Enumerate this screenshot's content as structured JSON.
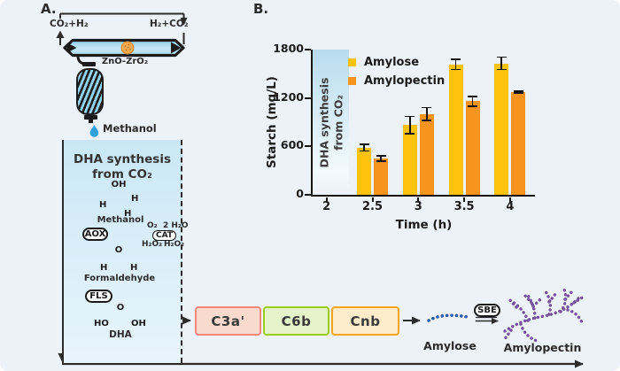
{
  "panel_a": {
    "label": "A.",
    "inlet_gas": "CO₂+H₂",
    "outlet_gas": "H₂+CO₂",
    "catalyst": "ZnO-ZrO₂",
    "condensed_product": "Methanol",
    "reaction_box": {
      "title_line1": "DHA synthesis",
      "title_line2": "from CO₂",
      "methanol_struct": {
        "oh": "OH",
        "h_left": "H",
        "h_right": "H",
        "h_bottom": "H",
        "label": "Methanol"
      },
      "aox_enzyme": "AOX",
      "cat_enzyme": "CAT",
      "o2": "O₂",
      "water": "2 H₂O",
      "h2o2_in": "H₂O₂",
      "h2o2_out": "H₂O₂",
      "formaldehyde_struct": {
        "o": "O",
        "h_left": "H",
        "h_right": "H",
        "label": "Formaldehyde"
      },
      "fls_enzyme": "FLS",
      "dha_struct": {
        "o": "O",
        "ho": "HO",
        "oh": "OH",
        "label": "DHA"
      }
    }
  },
  "panel_b": {
    "label": "B."
  },
  "chart_data": {
    "type": "bar",
    "title": "",
    "xlabel": "Time (h)",
    "ylabel": "Starch (mg/L)",
    "x_ticks": [
      "2",
      "2.5",
      "3",
      "3.5",
      "4"
    ],
    "y_ticks": [
      "0",
      "600",
      "1200",
      "1800"
    ],
    "ylim": [
      0,
      1800
    ],
    "grid": false,
    "legend_position": "top-left-inside",
    "categories": [
      2.5,
      3,
      3.5,
      4
    ],
    "series": [
      {
        "name": "Amylose",
        "color": "#FFC20E",
        "values": [
          585,
          865,
          1615,
          1630
        ],
        "errors": [
          50,
          115,
          70,
          85
        ]
      },
      {
        "name": "Amylopectin",
        "color": "#F7941E",
        "values": [
          450,
          1000,
          1160,
          1270
        ],
        "errors": [
          45,
          90,
          70,
          20
        ]
      }
    ],
    "band": {
      "label_line1": "DHA synthesis",
      "label_line2": "from CO₂",
      "x_start": 2,
      "x_end": 2.25
    }
  },
  "pathway": {
    "genes": [
      {
        "label": "C3a'",
        "fill": "#FADACC",
        "border": "#F2887B"
      },
      {
        "label": "C6b",
        "fill": "#E5F3CA",
        "border": "#9ACD1E"
      },
      {
        "label": "Cnb",
        "fill": "#FDEBC9",
        "border": "#F5A51F"
      }
    ],
    "amylose_label": "Amylose",
    "sbe_enzyme": "SBE",
    "amylopectin_label": "Amylopectin",
    "amylose_color": "#2F5FA7",
    "amylopectin_color": "#75529C"
  }
}
